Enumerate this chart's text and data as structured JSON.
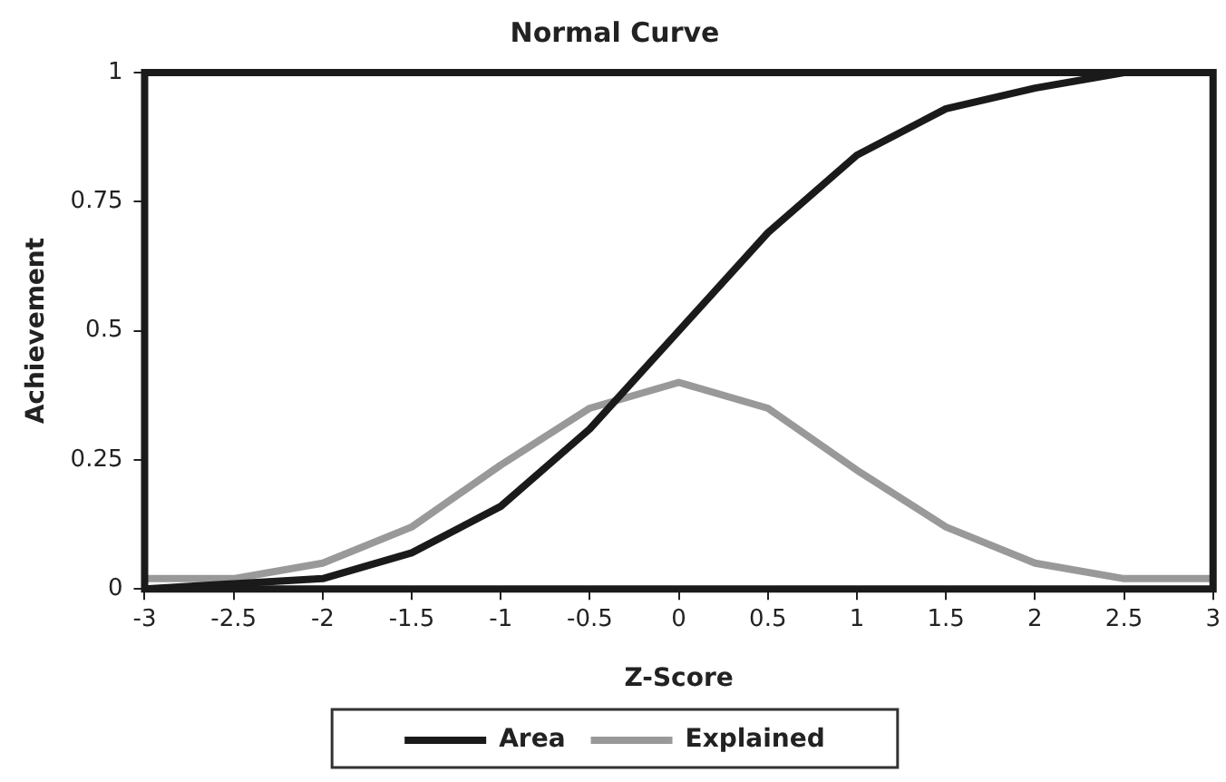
{
  "chart_data": {
    "type": "line",
    "title": "Normal Curve",
    "xlabel": "Z-Score",
    "ylabel": "Achievement",
    "x": [
      -3,
      -2.5,
      -2,
      -1.5,
      -1,
      -0.5,
      0,
      0.5,
      1,
      1.5,
      2,
      2.5,
      3
    ],
    "series": [
      {
        "name": "Area",
        "color": "#1a1a1a",
        "values": [
          0,
          0.01,
          0.02,
          0.07,
          0.16,
          0.31,
          0.5,
          0.69,
          0.84,
          0.93,
          0.97,
          1,
          1
        ]
      },
      {
        "name": "Explained",
        "color": "#999999",
        "values": [
          0.02,
          0.02,
          0.05,
          0.12,
          0.24,
          0.35,
          0.4,
          0.35,
          0.23,
          0.12,
          0.05,
          0.02,
          0.02
        ]
      }
    ],
    "xlim": [
      -3,
      3
    ],
    "xticks": [
      -3,
      -2.5,
      -2,
      -1.5,
      -1,
      -0.5,
      0,
      0.5,
      1,
      1.5,
      2,
      2.5,
      3
    ],
    "ylim": [
      0,
      1
    ],
    "yticks": [
      0,
      0.25,
      0.5,
      0.75,
      1
    ],
    "grid": false,
    "legend": "bottom",
    "marker": "none",
    "line_style": "solid"
  }
}
